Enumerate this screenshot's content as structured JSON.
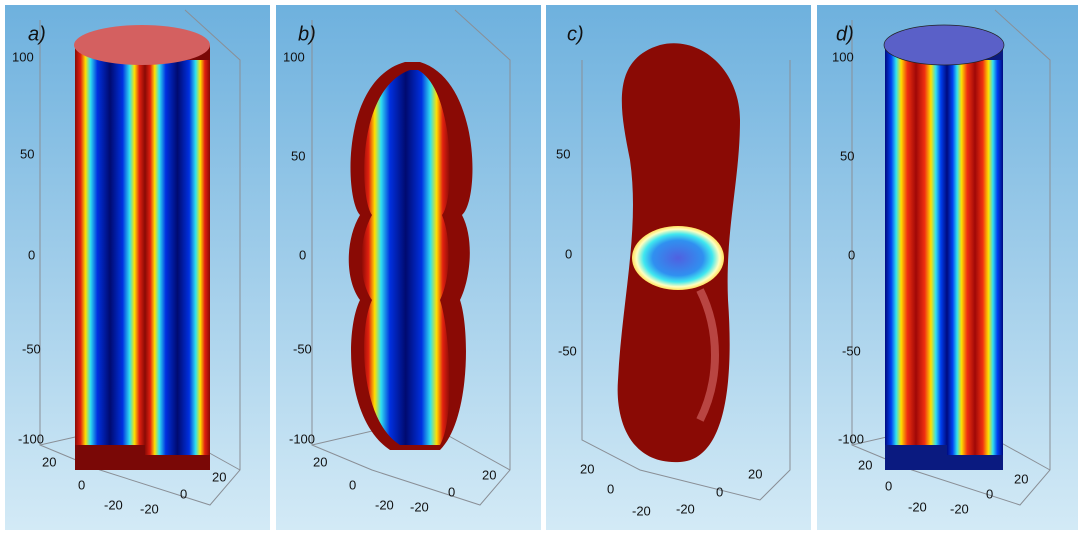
{
  "panels": [
    {
      "label": "a)",
      "z_ticks": [
        100,
        50,
        0,
        -50,
        -100
      ],
      "x_ticks": [
        20,
        0,
        -20
      ],
      "y_ticks": [
        -20,
        0,
        20
      ]
    },
    {
      "label": "b)",
      "z_ticks": [
        100,
        50,
        0,
        -50,
        -100
      ],
      "x_ticks": [
        20,
        0,
        -20
      ],
      "y_ticks": [
        -20,
        0,
        20
      ]
    },
    {
      "label": "c)",
      "z_ticks": [
        50,
        0,
        -50
      ],
      "x_ticks": [
        20,
        0,
        -20
      ],
      "y_ticks": [
        -20,
        0,
        20
      ]
    },
    {
      "label": "d)",
      "z_ticks": [
        100,
        50,
        0,
        -50,
        -100
      ],
      "x_ticks": [
        20,
        0,
        -20
      ],
      "y_ticks": [
        -20,
        0,
        20
      ]
    }
  ]
}
